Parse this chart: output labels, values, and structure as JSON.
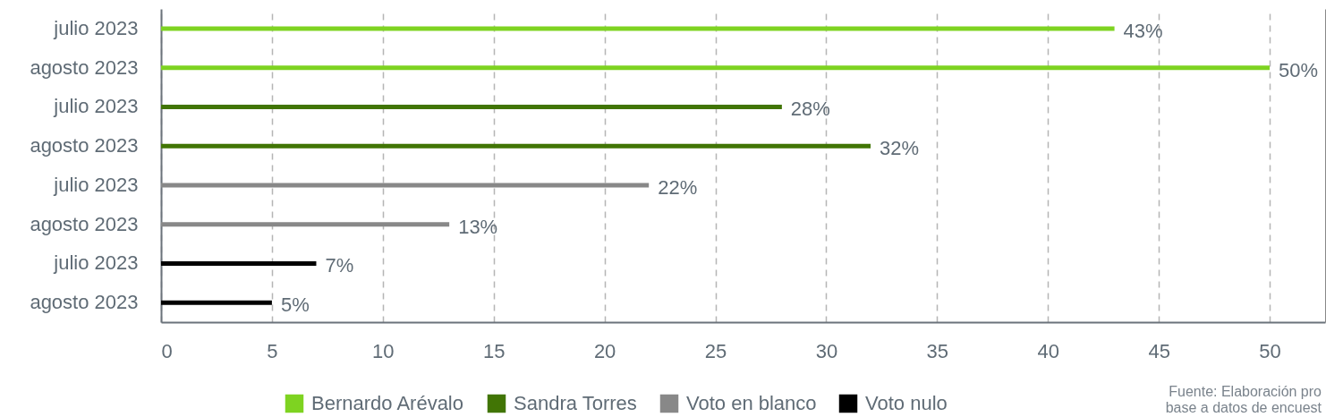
{
  "chart_data": {
    "type": "bar",
    "orientation": "horizontal",
    "categories": [
      "julio 2023",
      "agosto 2023",
      "julio 2023",
      "agosto 2023",
      "julio 2023",
      "agosto 2023",
      "julio 2023",
      "agosto 2023"
    ],
    "series": [
      {
        "name": "Bernardo Arévalo",
        "color": "#7ed321",
        "values": [
          43,
          50,
          null,
          null,
          null,
          null,
          null,
          null
        ],
        "value_labels": [
          "43%",
          "50%",
          null,
          null,
          null,
          null,
          null,
          null
        ]
      },
      {
        "name": "Sandra Torres",
        "color": "#417505",
        "values": [
          null,
          null,
          28,
          32,
          null,
          null,
          null,
          null
        ],
        "value_labels": [
          null,
          null,
          "28%",
          "32%",
          null,
          null,
          null,
          null
        ]
      },
      {
        "name": "Voto en blanco",
        "color": "#888888",
        "values": [
          null,
          null,
          null,
          null,
          22,
          13,
          null,
          null
        ],
        "value_labels": [
          null,
          null,
          null,
          null,
          "22%",
          "13%",
          null,
          null
        ]
      },
      {
        "name": "Voto nulo",
        "color": "#000000",
        "values": [
          null,
          null,
          null,
          null,
          null,
          null,
          7,
          5
        ],
        "value_labels": [
          null,
          null,
          null,
          null,
          null,
          null,
          "7%",
          "5%"
        ]
      }
    ],
    "xlim": [
      0,
      52.5
    ],
    "xticks": [
      0,
      5,
      10,
      15,
      20,
      25,
      30,
      35,
      40,
      45,
      50
    ],
    "grid": "x",
    "legend": "bottom",
    "annotations": [
      "Fuente: Elaboración pro",
      "base a datos de encuest"
    ]
  }
}
